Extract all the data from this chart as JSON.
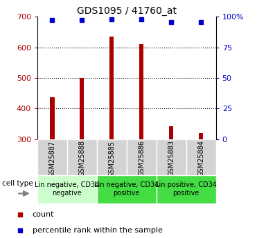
{
  "title": "GDS1095 / 41760_at",
  "samples": [
    "GSM25887",
    "GSM25888",
    "GSM25885",
    "GSM25886",
    "GSM25883",
    "GSM25884"
  ],
  "counts": [
    437,
    500,
    635,
    610,
    342,
    320
  ],
  "percentile_ranks": [
    97,
    97.5,
    98,
    98,
    95.5,
    95.5
  ],
  "ylim_left": [
    300,
    700
  ],
  "ylim_right": [
    0,
    100
  ],
  "yticks_left": [
    300,
    400,
    500,
    600,
    700
  ],
  "yticks_right": [
    0,
    25,
    50,
    75,
    100
  ],
  "bar_color": "#aa0000",
  "dot_color": "#0000cc",
  "grid_color": "#000000",
  "cell_type_groups": [
    {
      "label": "Lin negative, CD34\nnegative",
      "start": 0,
      "end": 1,
      "color": "#ccffcc"
    },
    {
      "label": "Lin negative, CD34\npositive",
      "start": 2,
      "end": 3,
      "color": "#44dd44"
    },
    {
      "label": "Lin positive, CD34\npositive",
      "start": 4,
      "end": 5,
      "color": "#44dd44"
    }
  ],
  "legend_items": [
    {
      "color": "#aa0000",
      "label": "count"
    },
    {
      "color": "#0000cc",
      "label": "percentile rank within the sample"
    }
  ],
  "cell_type_label": "cell type",
  "bar_width": 0.15,
  "sample_box_color": "#d3d3d3",
  "title_fontsize": 10,
  "tick_fontsize": 8,
  "sample_fontsize": 7,
  "celltype_fontsize": 7,
  "legend_fontsize": 8
}
